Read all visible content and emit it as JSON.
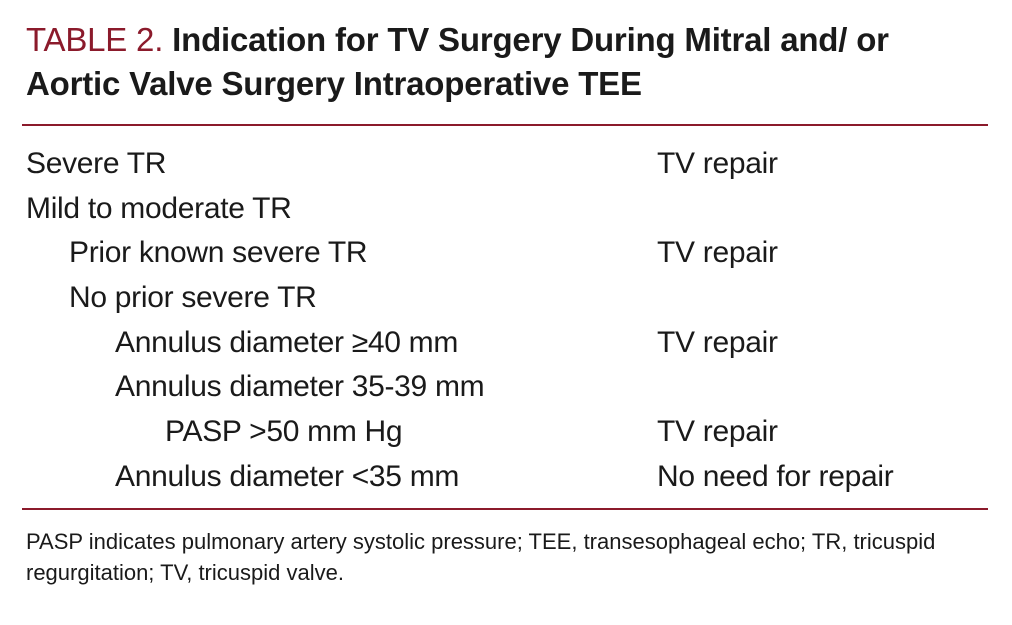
{
  "table": {
    "label": "TABLE 2.",
    "title": "Indication for TV Surgery During Mitral and/ or Aortic Valve Surgery Intraoperative TEE",
    "rows": [
      {
        "condition": "Severe TR",
        "result": "TV repair"
      },
      {
        "condition": "Mild to moderate TR",
        "result": ""
      },
      {
        "condition": "Prior known severe TR",
        "result": "TV repair"
      },
      {
        "condition": "No prior severe TR",
        "result": ""
      },
      {
        "condition": "Annulus diameter ≥40 mm",
        "result": "TV repair"
      },
      {
        "condition": "Annulus diameter 35-39 mm",
        "result": ""
      },
      {
        "condition": "PASP >50 mm Hg",
        "result": "TV repair"
      },
      {
        "condition": "Annulus diameter <35 mm",
        "result": "No need for repair"
      }
    ],
    "footnote": "PASP indicates pulmonary artery systolic pressure; TEE, transesophageal echo; TR, tricuspid regurgitation; TV, tricuspid valve."
  },
  "colors": {
    "accent": "#8b1a2b",
    "text": "#1a1a1a"
  }
}
